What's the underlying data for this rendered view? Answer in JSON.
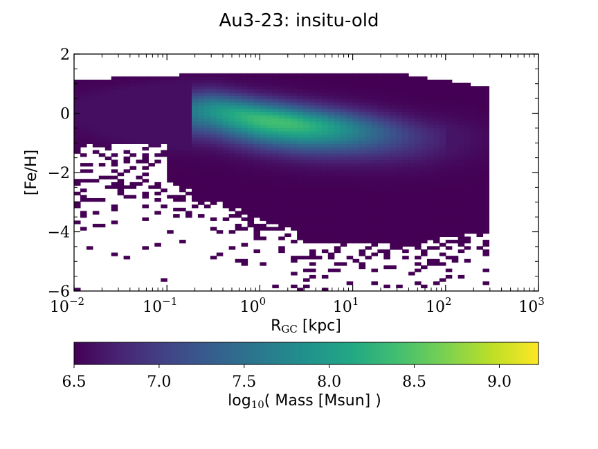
{
  "chart_data": {
    "type": "heatmap",
    "title": "Au3-23: insitu-old",
    "xlabel": {
      "main": "R",
      "sub": "GC",
      "rest": " [kpc]"
    },
    "ylabel": "[Fe/H]",
    "xscale": "log",
    "xlim": [
      0.01,
      1000
    ],
    "ylim": [
      -6,
      2
    ],
    "x_ticks": [
      {
        "base": "10",
        "exp": "−2"
      },
      {
        "base": "10",
        "exp": "−1"
      },
      {
        "base": "10",
        "exp": "0"
      },
      {
        "base": "10",
        "exp": "1"
      },
      {
        "base": "10",
        "exp": "2"
      },
      {
        "base": "10",
        "exp": "3"
      }
    ],
    "y_ticks": [
      "2",
      "0",
      "−2",
      "−4",
      "−6"
    ],
    "y_tick_values": [
      2,
      0,
      -2,
      -4,
      -6
    ],
    "colormap": "viridis",
    "colorbar": {
      "label_main": "log",
      "label_sub": "10",
      "label_rest": "( Mass [Msun] )",
      "range": [
        6.5,
        9.23
      ],
      "ticks": [
        "6.5",
        "7.0",
        "7.5",
        "8.0",
        "8.5",
        "9.0"
      ],
      "tick_values": [
        6.5,
        7.0,
        7.5,
        8.0,
        8.5,
        9.0
      ]
    },
    "distribution": {
      "description": "2D histogram of in-situ old stars: metallicity vs galactocentric radius",
      "populated_x_range": [
        0.01,
        300
      ],
      "populated_y_range": [
        -6,
        1.4
      ],
      "ridge": [
        {
          "x": 0.3,
          "y": 0.1
        },
        {
          "x": 1.0,
          "y": -0.2
        },
        {
          "x": 3.0,
          "y": -0.4
        },
        {
          "x": 10,
          "y": -0.55
        },
        {
          "x": 30,
          "y": -0.7
        },
        {
          "x": 60,
          "y": -0.8
        }
      ],
      "peak_value": 8.4,
      "peak_x": 1.5,
      "peak_y": -0.25
    }
  }
}
